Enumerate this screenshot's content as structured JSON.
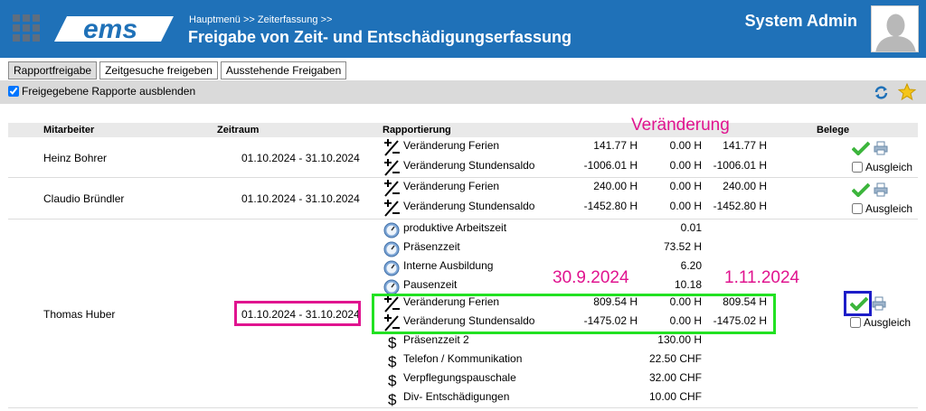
{
  "header": {
    "breadcrumb": [
      "Hauptmenü",
      ">>",
      "Zeiterfassung",
      ">>"
    ],
    "title": "Freigabe von Zeit- und Entschädigungserfassung",
    "user_name": "System Admin",
    "logo_text": "ems",
    "color": "#1f71b8"
  },
  "tabs": [
    {
      "label": "Rapportfreigabe",
      "active": true
    },
    {
      "label": "Zeitgesuche freigeben",
      "active": false
    },
    {
      "label": "Ausstehende Freigaben",
      "active": false
    }
  ],
  "toolbar": {
    "hide_label": "Freigegebene Rapporte ausblenden",
    "hide_checked": true
  },
  "table": {
    "headers": {
      "employee": "Mitarbeiter",
      "period": "Zeitraum",
      "report": "Rapportierung",
      "docs": "Belege"
    },
    "ausgleich_label": "Ausgleich",
    "rows": [
      {
        "name": "Heinz Bohrer",
        "period": "01.10.2024 - 31.10.2024",
        "lines": [
          {
            "icon": "plus-minus-icon",
            "label": "Veränderung Ferien",
            "v1": "141.77 H",
            "v2": "0.00 H",
            "v3": "141.77 H"
          },
          {
            "icon": "plus-minus-icon",
            "label": "Veränderung Stundensaldo",
            "v1": "-1006.01 H",
            "v2": "0.00 H",
            "v3": "-1006.01 H"
          }
        ]
      },
      {
        "name": "Claudio Bründler",
        "period": "01.10.2024 - 31.10.2024",
        "lines": [
          {
            "icon": "plus-minus-icon",
            "label": "Veränderung Ferien",
            "v1": "240.00 H",
            "v2": "0.00 H",
            "v3": "240.00 H"
          },
          {
            "icon": "plus-minus-icon",
            "label": "Veränderung Stundensaldo",
            "v1": "-1452.80 H",
            "v2": "0.00 H",
            "v3": "-1452.80 H"
          }
        ]
      },
      {
        "name": "Thomas Huber",
        "period": "01.10.2024 - 31.10.2024",
        "lines": [
          {
            "icon": "clock-icon",
            "label": "produktive Arbeitszeit",
            "v1": "",
            "v2": "0.01",
            "v3": ""
          },
          {
            "icon": "clock-icon",
            "label": "Präsenzzeit",
            "v1": "",
            "v2": "73.52 H",
            "v3": ""
          },
          {
            "icon": "clock-icon",
            "label": "Interne Ausbildung",
            "v1": "",
            "v2": "6.20",
            "v3": ""
          },
          {
            "icon": "clock-icon",
            "label": "Pausenzeit",
            "v1": "",
            "v2": "10.18",
            "v3": ""
          },
          {
            "icon": "plus-minus-icon",
            "label": "Veränderung Ferien",
            "v1": "809.54 H",
            "v2": "0.00 H",
            "v3": "809.54 H"
          },
          {
            "icon": "plus-minus-icon",
            "label": "Veränderung Stundensaldo",
            "v1": "-1475.02 H",
            "v2": "0.00 H",
            "v3": "-1475.02 H"
          },
          {
            "icon": "dollar-icon",
            "label": "Präsenzzeit 2",
            "v1": "",
            "v2": "130.00 H",
            "v3": ""
          },
          {
            "icon": "dollar-icon",
            "label": "Telefon / Kommunikation",
            "v1": "",
            "v2": "22.50 CHF",
            "v3": ""
          },
          {
            "icon": "dollar-icon",
            "label": "Verpflegungspauschale",
            "v1": "",
            "v2": "32.00 CHF",
            "v3": ""
          },
          {
            "icon": "dollar-icon",
            "label": "Div- Entschädigungen",
            "v1": "",
            "v2": "10.00 CHF",
            "v3": ""
          }
        ]
      }
    ]
  },
  "annotations": {
    "change": "Veränderung",
    "date_from": "30.9.2024",
    "date_to": "1.11.2024",
    "color_pink": "#e0148f",
    "color_green": "#22e122",
    "color_blue": "#1d1dc8"
  }
}
